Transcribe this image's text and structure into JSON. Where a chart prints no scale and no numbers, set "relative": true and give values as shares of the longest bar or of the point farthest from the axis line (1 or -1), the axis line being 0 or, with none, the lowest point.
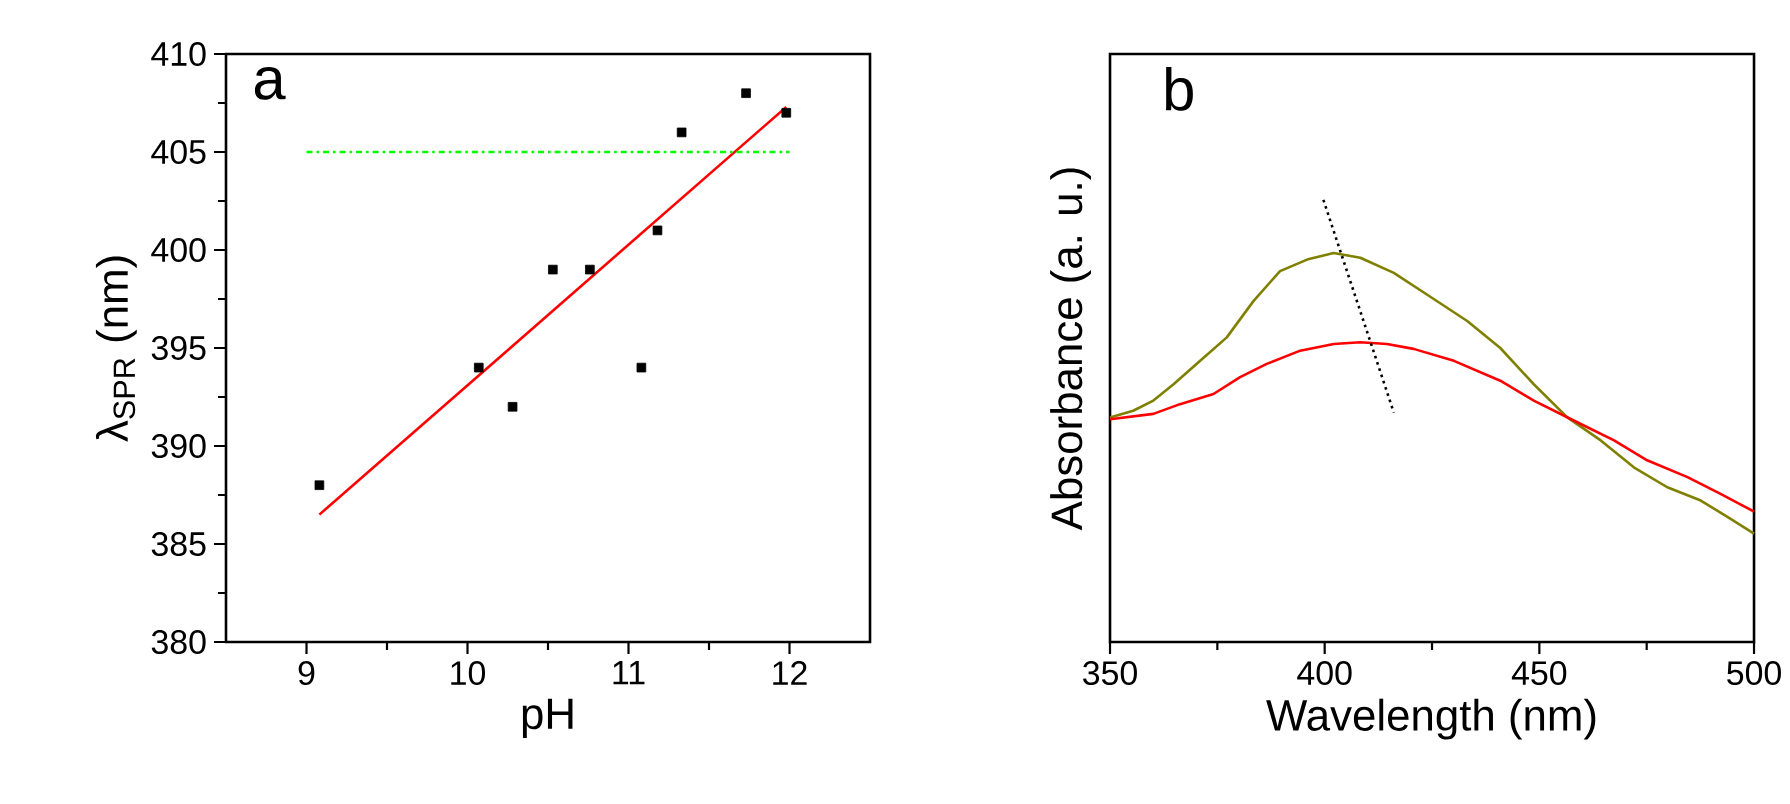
{
  "chart_data": [
    {
      "type": "scatter",
      "xlabel": "pH",
      "ylabel": "λ$_{SPR}$ (nm)",
      "annotations": [
        "a"
      ],
      "xlim": [
        8.5,
        12.5
      ],
      "xticks": [
        9,
        10,
        11,
        12
      ],
      "ylim": [
        380,
        410
      ],
      "yticks": [
        380,
        385,
        390,
        395,
        400,
        405,
        410
      ],
      "series": [
        {
          "type": "scatter",
          "marker": "square",
          "color": "#000000",
          "x": [
            9.08,
            10.07,
            10.28,
            10.53,
            10.76,
            11.08,
            11.18,
            11.33,
            11.73,
            11.98
          ],
          "values": [
            388,
            394,
            392,
            399,
            399,
            394,
            401,
            406,
            408,
            407
          ]
        },
        {
          "type": "line",
          "color": "#ff0000",
          "line_style": "solid",
          "x": [
            9.08,
            11.98
          ],
          "values": [
            386.5,
            407.3
          ]
        },
        {
          "type": "line",
          "color": "#00ff00",
          "line_style": "dashdot",
          "x": [
            9,
            12
          ],
          "values": [
            405,
            405
          ]
        }
      ]
    },
    {
      "type": "line",
      "relative": true,
      "tick_labels": "x",
      "xlabel": "Wavelength (nm)",
      "ylabel": "Absorbance (a. u.)",
      "annotations": [
        "b"
      ],
      "xlim": [
        350,
        500
      ],
      "xticks": [
        350,
        400,
        450,
        500
      ],
      "series": [
        {
          "color": "#808000",
          "line_style": "solid",
          "x": [
            350,
            355.4,
            360.1,
            364.8,
            371.0,
            377.2,
            383.4,
            389.6,
            395.9,
            402.1,
            408.3,
            416.1,
            423.8,
            433.2,
            440.9,
            448.7,
            456.5,
            464.3,
            472.0,
            479.8,
            487.6,
            493.8,
            500
          ],
          "values": [
            0.508,
            0.523,
            0.546,
            0.583,
            0.636,
            0.689,
            0.771,
            0.839,
            0.865,
            0.88,
            0.869,
            0.835,
            0.786,
            0.726,
            0.665,
            0.583,
            0.508,
            0.456,
            0.395,
            0.35,
            0.32,
            0.283,
            0.245
          ]
        },
        {
          "color": "#ff0000",
          "line_style": "solid",
          "x": [
            350,
            360.1,
            366.3,
            374.1,
            380.3,
            386.5,
            394.3,
            402.1,
            408.3,
            414.5,
            420.7,
            430.1,
            440.9,
            448.7,
            458.0,
            467.4,
            475.1,
            484.5,
            492.2,
            500
          ],
          "values": [
            0.504,
            0.516,
            0.538,
            0.561,
            0.599,
            0.629,
            0.659,
            0.674,
            0.678,
            0.674,
            0.663,
            0.636,
            0.591,
            0.546,
            0.501,
            0.456,
            0.411,
            0.373,
            0.335,
            0.295
          ]
        },
        {
          "color": "#000000",
          "line_style": "dotted",
          "x": [
            399.7,
            416.1
          ],
          "values": [
            1.0,
            0.519
          ]
        }
      ]
    }
  ]
}
